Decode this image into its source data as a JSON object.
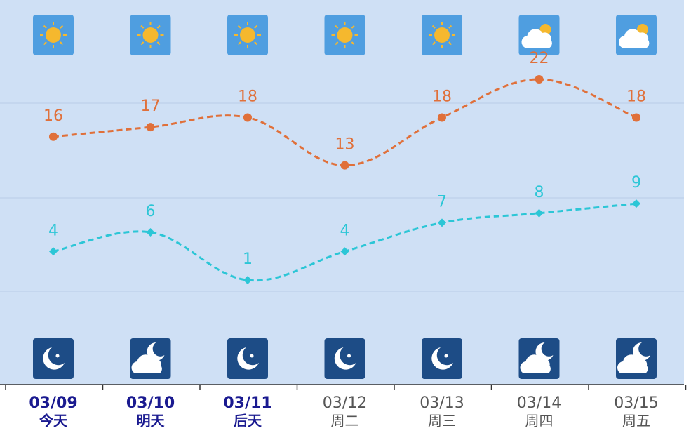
{
  "chart_data": {
    "type": "line",
    "categories": [
      "03/09",
      "03/10",
      "03/11",
      "03/12",
      "03/13",
      "03/14",
      "03/15"
    ],
    "day_labels": [
      "今天",
      "明天",
      "后天",
      "周二",
      "周三",
      "周四",
      "周五"
    ],
    "series": [
      {
        "name": "high",
        "color": "#e0703a",
        "values": [
          16,
          17,
          18,
          13,
          18,
          22,
          18
        ]
      },
      {
        "name": "low",
        "color": "#2cc6d6",
        "values": [
          4,
          6,
          1,
          4,
          7,
          8,
          9
        ]
      }
    ],
    "ylim": [
      -10,
      30
    ]
  }
}
